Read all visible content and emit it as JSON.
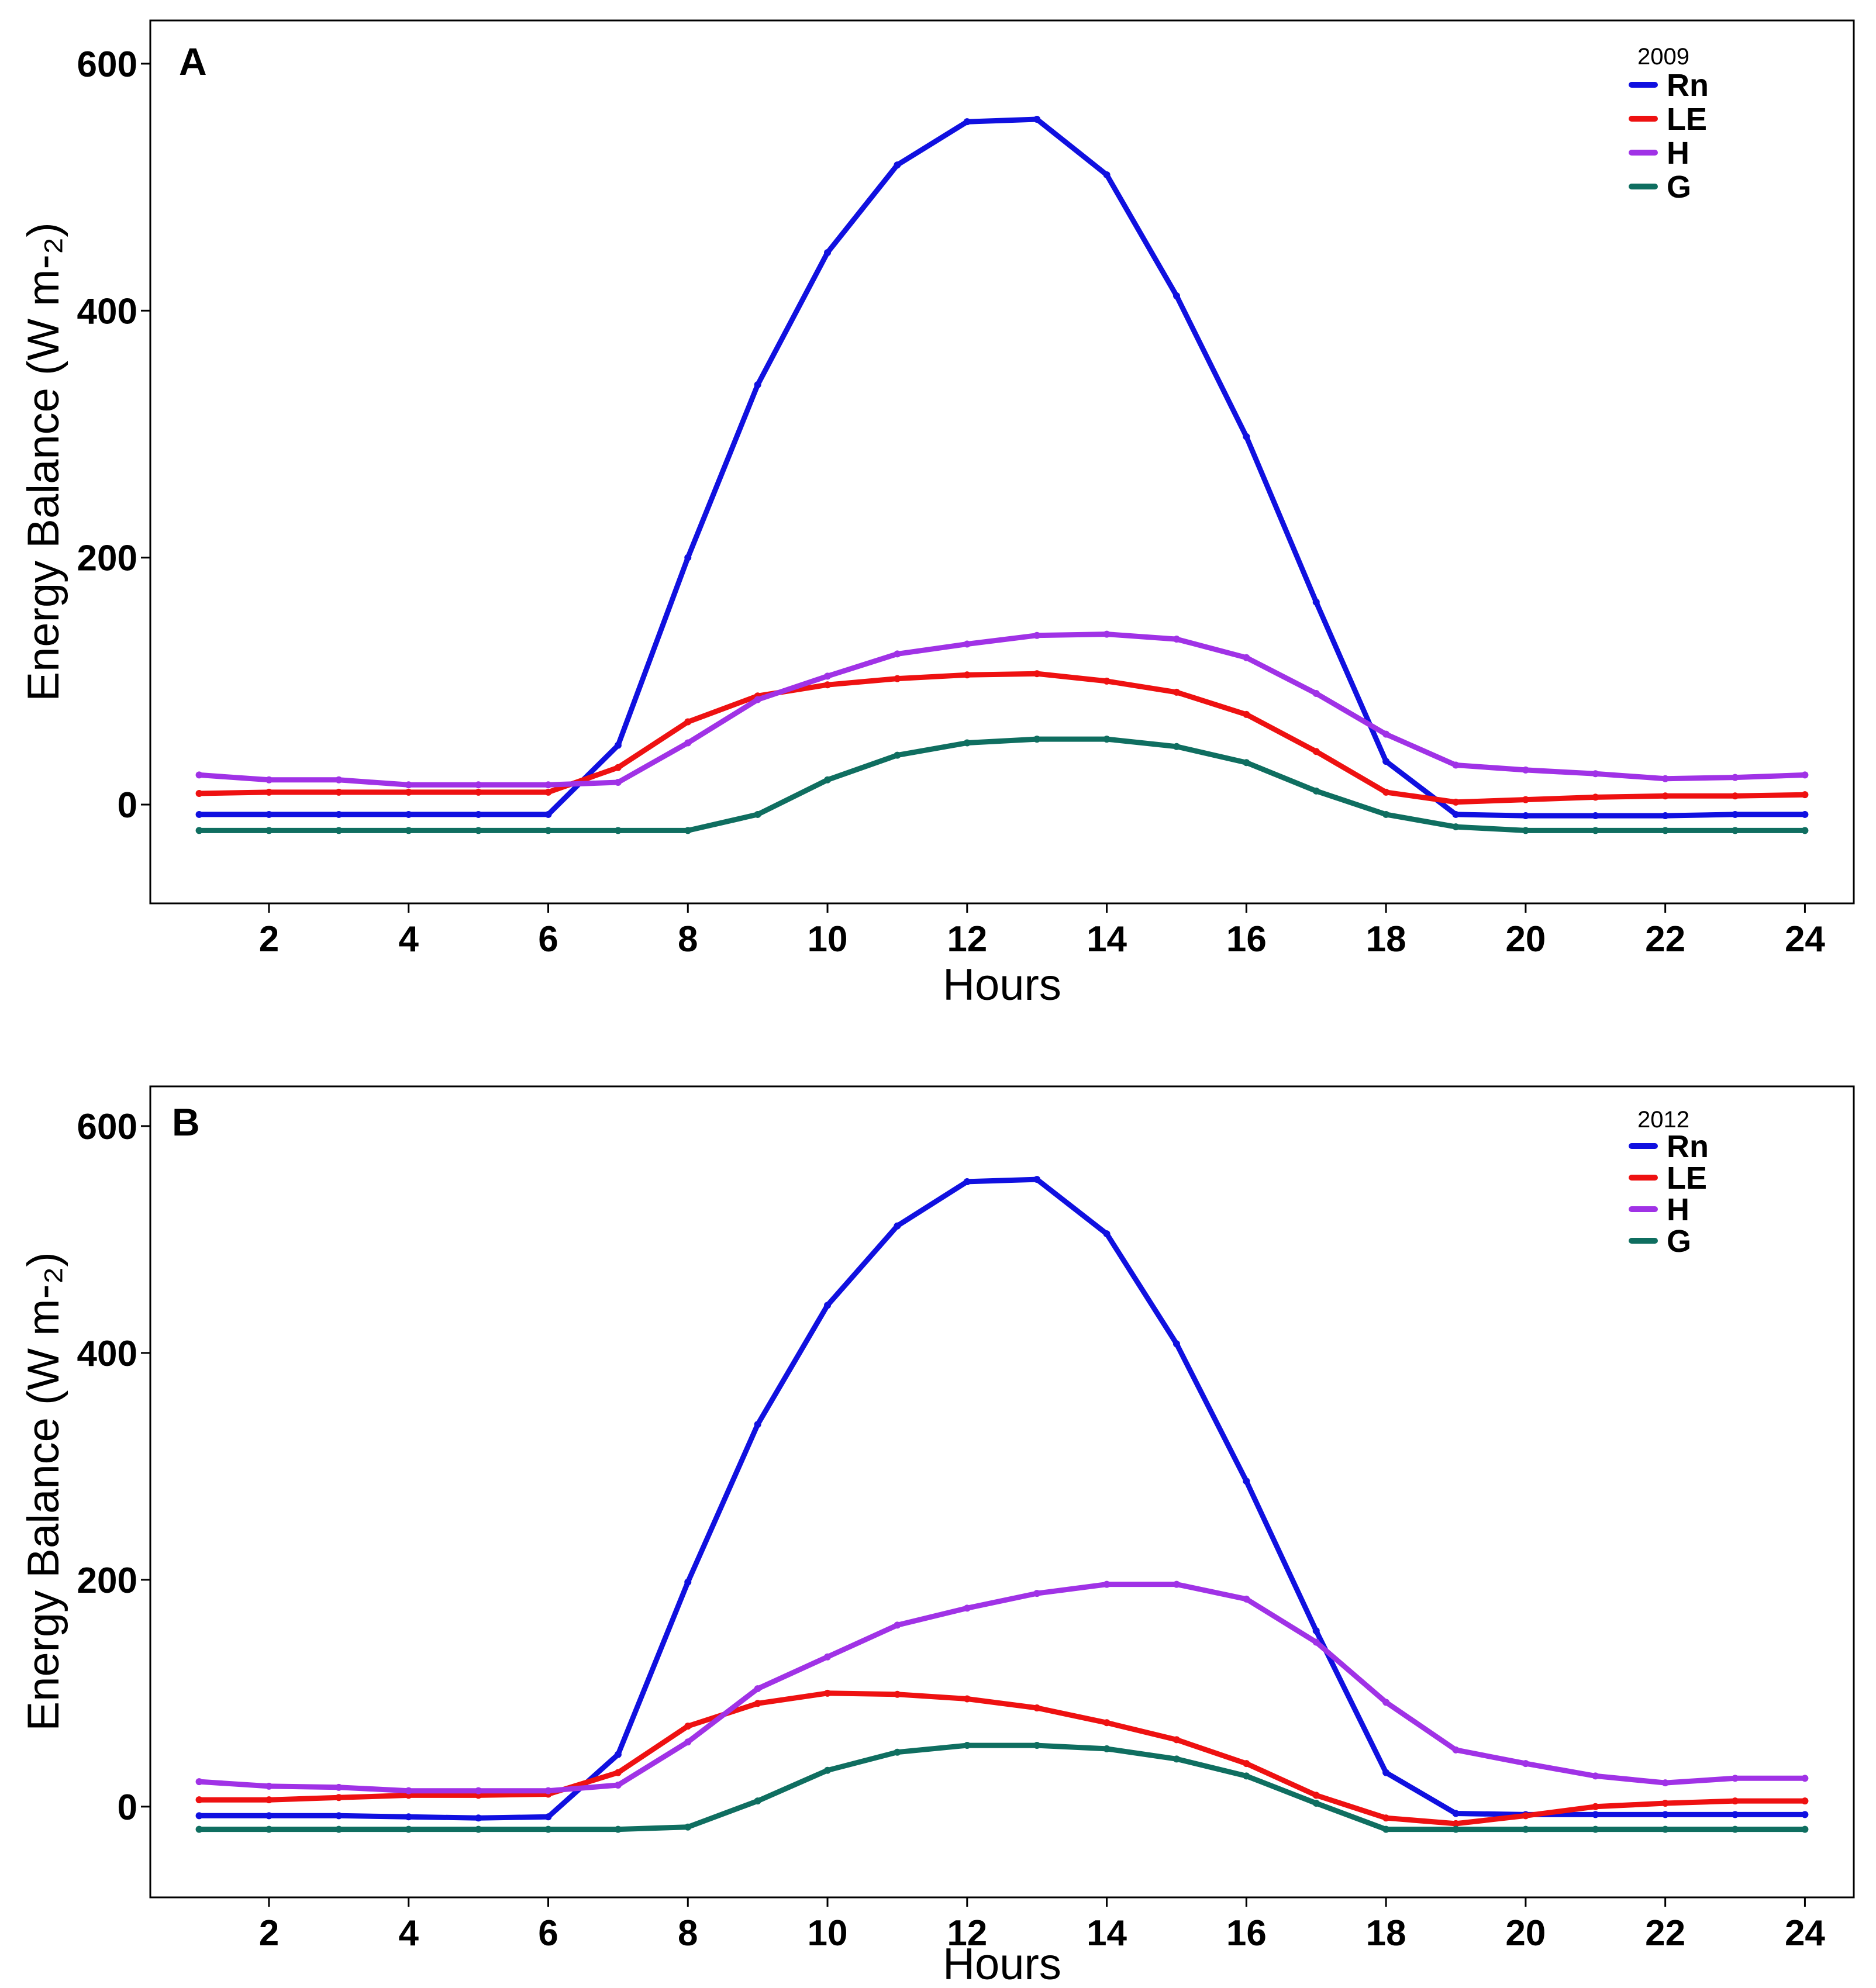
{
  "chart_data": [
    {
      "type": "line",
      "panel_label": "A",
      "legend_title": "2009",
      "xlabel": "Hours",
      "ylabel": "Energy Balance (W m-₂)",
      "xlim": [
        0.3,
        24.7
      ],
      "ylim": [
        -80,
        635
      ],
      "xticks": [
        2,
        4,
        6,
        8,
        10,
        12,
        14,
        16,
        18,
        20,
        22,
        24
      ],
      "yticks": [
        0,
        200,
        400,
        600
      ],
      "grid": false,
      "legend_position": "top-right",
      "x": [
        1,
        2,
        3,
        4,
        5,
        6,
        7,
        8,
        9,
        10,
        11,
        12,
        13,
        14,
        15,
        16,
        17,
        18,
        19,
        20,
        21,
        22,
        23,
        24
      ],
      "series": [
        {
          "name": "Rn",
          "color": "#1010e0",
          "values": [
            -8,
            -8,
            -8,
            -8,
            -8,
            -8,
            48,
            200,
            340,
            447,
            518,
            553,
            555,
            510,
            412,
            298,
            164,
            35,
            -8,
            -9,
            -9,
            -9,
            -8,
            -8
          ]
        },
        {
          "name": "LE",
          "color": "#ee1111",
          "values": [
            9,
            10,
            10,
            10,
            10,
            10,
            30,
            67,
            88,
            97,
            102,
            105,
            106,
            100,
            91,
            73,
            43,
            10,
            2,
            4,
            6,
            7,
            7,
            8
          ]
        },
        {
          "name": "H",
          "color": "#a032e6",
          "values": [
            24,
            20,
            20,
            16,
            16,
            16,
            18,
            50,
            85,
            104,
            122,
            130,
            137,
            138,
            134,
            119,
            90,
            57,
            32,
            28,
            25,
            21,
            22,
            24
          ]
        },
        {
          "name": "G",
          "color": "#0f6e60",
          "values": [
            -21,
            -21,
            -21,
            -21,
            -21,
            -21,
            -21,
            -21,
            -8,
            20,
            40,
            50,
            53,
            53,
            47,
            34,
            11,
            -8,
            -18,
            -21,
            -21,
            -21,
            -21,
            -21
          ]
        }
      ]
    },
    {
      "type": "line",
      "panel_label": "B",
      "legend_title": "2012",
      "xlabel": "Hours",
      "ylabel": "Energy Balance (W m-₂)",
      "xlim": [
        0.3,
        24.7
      ],
      "ylim": [
        -80,
        635
      ],
      "xticks": [
        2,
        4,
        6,
        8,
        10,
        12,
        14,
        16,
        18,
        20,
        22,
        24
      ],
      "yticks": [
        0,
        200,
        400,
        600
      ],
      "grid": false,
      "legend_position": "top-right",
      "x": [
        1,
        2,
        3,
        4,
        5,
        6,
        7,
        8,
        9,
        10,
        11,
        12,
        13,
        14,
        15,
        16,
        17,
        18,
        19,
        20,
        21,
        22,
        23,
        24
      ],
      "series": [
        {
          "name": "Rn",
          "color": "#1010e0",
          "values": [
            -8,
            -8,
            -8,
            -9,
            -10,
            -9,
            46,
            198,
            337,
            442,
            512,
            551,
            553,
            505,
            408,
            287,
            155,
            30,
            -6,
            -7,
            -7,
            -7,
            -7,
            -7
          ]
        },
        {
          "name": "LE",
          "color": "#ee1111",
          "values": [
            6,
            6,
            8,
            10,
            10,
            11,
            30,
            71,
            91,
            100,
            99,
            95,
            87,
            74,
            59,
            38,
            10,
            -10,
            -15,
            -8,
            0,
            3,
            5,
            5
          ]
        },
        {
          "name": "H",
          "color": "#a032e6",
          "values": [
            22,
            18,
            17,
            14,
            14,
            14,
            19,
            57,
            104,
            132,
            160,
            175,
            188,
            196,
            196,
            183,
            145,
            92,
            50,
            38,
            27,
            21,
            25,
            25
          ]
        },
        {
          "name": "G",
          "color": "#0f6e60",
          "values": [
            -20,
            -20,
            -20,
            -20,
            -20,
            -20,
            -20,
            -18,
            5,
            32,
            48,
            54,
            54,
            51,
            42,
            27,
            3,
            -20,
            -20,
            -20,
            -20,
            -20,
            -20,
            -20
          ]
        }
      ]
    }
  ]
}
